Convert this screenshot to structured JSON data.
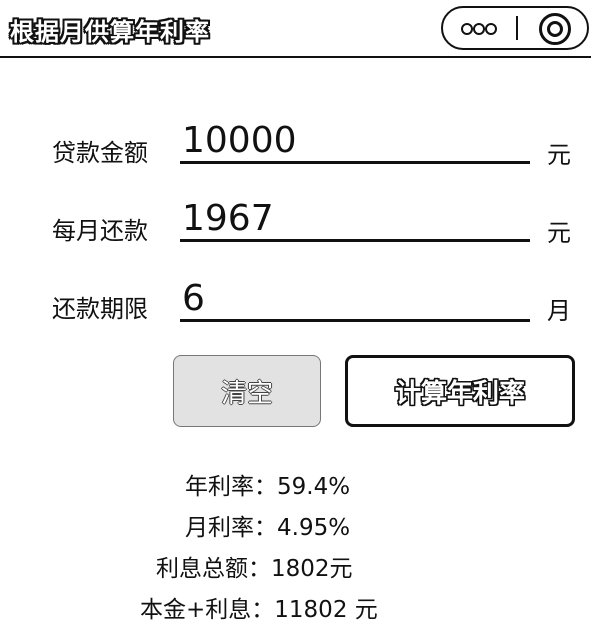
{
  "header": {
    "title": "根据月供算年利率",
    "more_icon": "more-dots-icon",
    "close_icon": "target-close-icon"
  },
  "form": {
    "loan_amount": {
      "label": "贷款金额",
      "value": "10000",
      "unit": "元"
    },
    "monthly_payment": {
      "label": "每月还款",
      "value": "1967",
      "unit": "元"
    },
    "term": {
      "label": "还款期限",
      "value": "6",
      "unit": "月"
    }
  },
  "buttons": {
    "clear": "清空",
    "calculate": "计算年利率"
  },
  "results": {
    "annual_rate": {
      "label": "年利率：",
      "value": "59.4%"
    },
    "monthly_rate": {
      "label": "月利率：",
      "value": "4.95%"
    },
    "total_interest": {
      "label": "利息总额：",
      "value": "1802元"
    },
    "principal_plus_interest": {
      "label": "本金+利息：",
      "value": "11802 元"
    }
  }
}
